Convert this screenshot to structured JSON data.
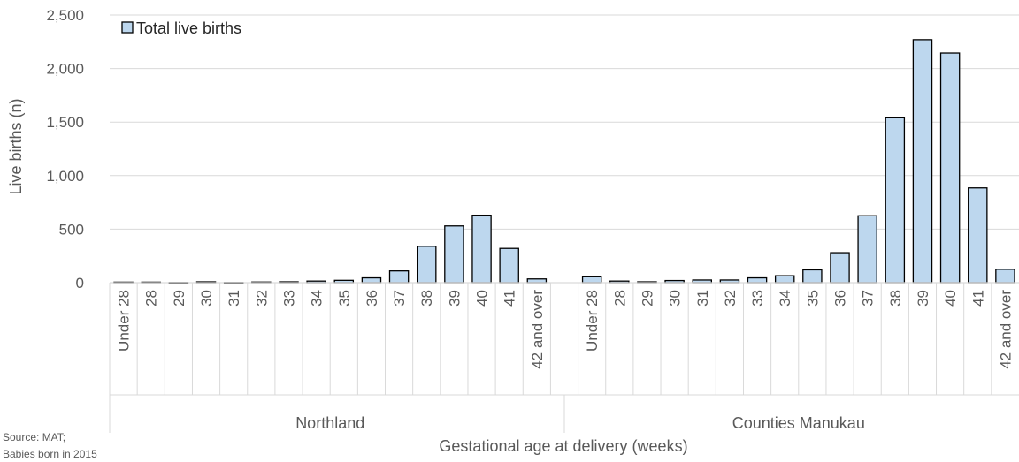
{
  "chart_data": {
    "type": "bar",
    "xlabel": "Gestational age at delivery (weeks)",
    "ylabel": "Live births (n)",
    "ylim": [
      0,
      2500
    ],
    "yticks": [
      "0",
      "500",
      "1,000",
      "1,500",
      "2,000",
      "2,500"
    ],
    "ytick_values": [
      0,
      500,
      1000,
      1500,
      2000,
      2500
    ],
    "grid": true,
    "legend_position": "top-left",
    "series": [
      {
        "name": "Total live births",
        "color": "#BDD7EE"
      }
    ],
    "groups": [
      {
        "name": "Northland",
        "categories": [
          "Under 28",
          "28",
          "29",
          "30",
          "31",
          "32",
          "33",
          "34",
          "35",
          "36",
          "37",
          "38",
          "39",
          "40",
          "41",
          "42 and over"
        ],
        "values": [
          5,
          5,
          1,
          8,
          1,
          6,
          8,
          15,
          22,
          45,
          110,
          340,
          530,
          630,
          320,
          35
        ]
      },
      {
        "name": "Counties Manukau",
        "categories": [
          "Under 28",
          "28",
          "29",
          "30",
          "31",
          "32",
          "33",
          "34",
          "35",
          "36",
          "37",
          "38",
          "39",
          "40",
          "41",
          "42 and over"
        ],
        "values": [
          55,
          15,
          8,
          20,
          25,
          25,
          45,
          65,
          120,
          280,
          625,
          1540,
          2270,
          2145,
          885,
          125
        ]
      }
    ]
  },
  "source_note": {
    "line1": "Source: MAT;",
    "line2": "Babies born in 2015"
  }
}
